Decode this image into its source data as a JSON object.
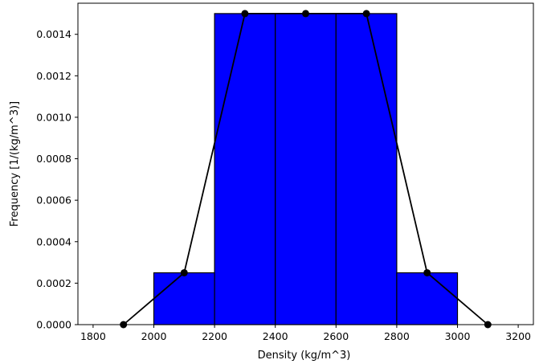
{
  "chart_data": {
    "type": "bar",
    "title": "",
    "xlabel": "Density (kg/m^3)",
    "ylabel": "Frequency [1/(kg/m^3)]",
    "xlim": [
      1750,
      3250
    ],
    "ylim": [
      0,
      0.00155
    ],
    "x_ticks": [
      "1800",
      "2000",
      "2200",
      "2400",
      "2600",
      "2800",
      "3000",
      "3200"
    ],
    "y_ticks": [
      "0.0000",
      "0.0002",
      "0.0004",
      "0.0006",
      "0.0008",
      "0.0010",
      "0.0012",
      "0.0014"
    ],
    "bins": [
      {
        "start": 2000,
        "end": 2200,
        "value": 0.00025
      },
      {
        "start": 2200,
        "end": 2400,
        "value": 0.0015
      },
      {
        "start": 2400,
        "end": 2600,
        "value": 0.0015
      },
      {
        "start": 2600,
        "end": 2800,
        "value": 0.0015
      },
      {
        "start": 2800,
        "end": 3000,
        "value": 0.00025
      }
    ],
    "polygon": {
      "x": [
        1900,
        2100,
        2300,
        2500,
        2700,
        2900,
        3100
      ],
      "y": [
        0,
        0.00025,
        0.0015,
        0.0015,
        0.0015,
        0.00025,
        0
      ]
    },
    "bar_color": "#0000ff",
    "line_color": "#000000",
    "grid": false
  }
}
